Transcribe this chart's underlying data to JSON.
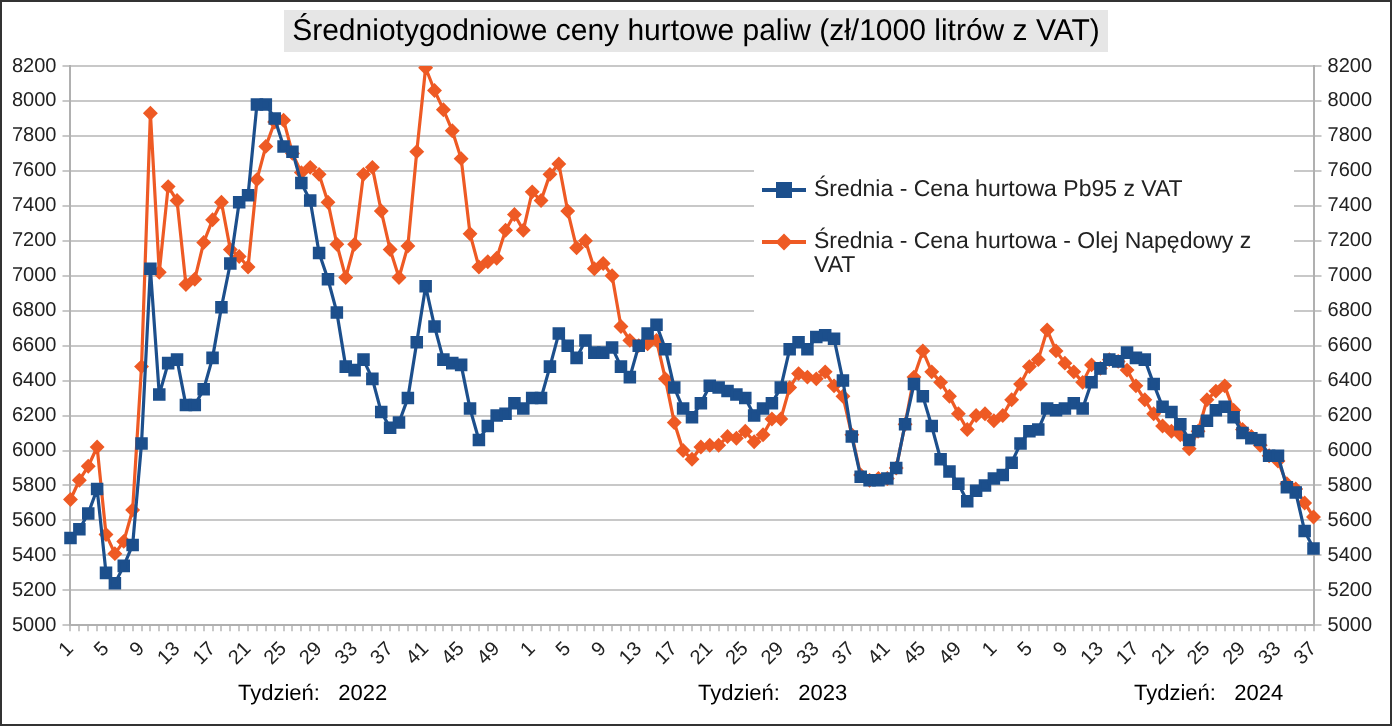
{
  "chart_data": {
    "type": "line",
    "title": "Średniotygodniowe ceny hurtowe paliw (zł/1000 litrów z VAT)",
    "categories": [
      "1",
      null,
      null,
      null,
      "5",
      null,
      null,
      null,
      "9",
      null,
      null,
      null,
      "13",
      null,
      null,
      null,
      "17",
      null,
      null,
      null,
      "21",
      null,
      null,
      null,
      "25",
      null,
      null,
      null,
      "29",
      null,
      null,
      null,
      "33",
      null,
      null,
      null,
      "37",
      null,
      null,
      null,
      "41",
      null,
      null,
      null,
      "45",
      null,
      null,
      null,
      "49",
      null,
      null,
      null,
      "1",
      null,
      null,
      null,
      "5",
      null,
      null,
      null,
      "9",
      null,
      null,
      null,
      "13",
      null,
      null,
      null,
      "17",
      null,
      null,
      null,
      "21",
      null,
      null,
      null,
      "25",
      null,
      null,
      null,
      "29",
      null,
      null,
      null,
      "33",
      null,
      null,
      null,
      "37",
      null,
      null,
      null,
      "41",
      null,
      null,
      null,
      "45",
      null,
      null,
      null,
      "49",
      null,
      null,
      null,
      "1",
      null,
      null,
      null,
      "5",
      null,
      null,
      null,
      "9",
      null,
      null,
      null,
      "13",
      null,
      null,
      null,
      "17",
      null,
      null,
      null,
      "21",
      null,
      null,
      null,
      "25",
      null,
      null,
      null,
      "29",
      null,
      null,
      null,
      "33",
      null,
      null,
      null,
      "37"
    ],
    "series": [
      {
        "name": "Średnia - Cena hurtowa Pb95 z VAT",
        "color": "#1c4f8c",
        "marker": "square",
        "values": [
          5500,
          5550,
          5640,
          5780,
          5300,
          5240,
          5340,
          5460,
          6040,
          7040,
          6320,
          6500,
          6520,
          6260,
          6260,
          6350,
          6530,
          6820,
          7070,
          7420,
          7460,
          7980,
          7980,
          7900,
          7740,
          7710,
          7530,
          7430,
          7130,
          6980,
          6790,
          6480,
          6460,
          6520,
          6410,
          6220,
          6130,
          6160,
          6300,
          6620,
          6940,
          6710,
          6520,
          6500,
          6490,
          6240,
          6060,
          6140,
          6200,
          6210,
          6270,
          6240,
          6300,
          6300,
          6480,
          6670,
          6600,
          6530,
          6630,
          6560,
          6560,
          6590,
          6480,
          6420,
          6600,
          6670,
          6720,
          6580,
          6360,
          6240,
          6190,
          6270,
          6370,
          6360,
          6340,
          6320,
          6300,
          6200,
          6240,
          6270,
          6360,
          6580,
          6620,
          6580,
          6650,
          6660,
          6640,
          6400,
          6080,
          5850,
          5830,
          5830,
          5840,
          5900,
          6150,
          6380,
          6310,
          6140,
          5950,
          5880,
          5810,
          5710,
          5770,
          5800,
          5840,
          5860,
          5930,
          6040,
          6110,
          6120,
          6240,
          6230,
          6240,
          6270,
          6240,
          6390,
          6470,
          6520,
          6510,
          6560,
          6530,
          6520,
          6380,
          6250,
          6220,
          6150,
          6060,
          6110,
          6170,
          6230,
          6250,
          6190,
          6100,
          6070,
          6060,
          5970,
          5970,
          5790,
          5760,
          5540,
          5440
        ]
      },
      {
        "name": "Średnia - Cena hurtowa - Olej Napędowy z VAT",
        "color": "#ee5a24",
        "marker": "diamond",
        "values": [
          5720,
          5830,
          5910,
          6020,
          5520,
          5410,
          5480,
          5660,
          6480,
          7930,
          7020,
          7510,
          7430,
          6950,
          6980,
          7190,
          7320,
          7420,
          7150,
          7110,
          7050,
          7550,
          7740,
          7880,
          7890,
          7700,
          7590,
          7620,
          7580,
          7420,
          7180,
          6990,
          7180,
          7580,
          7620,
          7370,
          7150,
          6990,
          7170,
          7710,
          8190,
          8060,
          7950,
          7830,
          7670,
          7240,
          7050,
          7080,
          7100,
          7260,
          7350,
          7260,
          7480,
          7430,
          7580,
          7640,
          7370,
          7160,
          7200,
          7040,
          7070,
          7000,
          6710,
          6630,
          6600,
          6610,
          6630,
          6410,
          6160,
          6000,
          5950,
          6020,
          6030,
          6030,
          6080,
          6070,
          6110,
          6050,
          6090,
          6180,
          6180,
          6360,
          6440,
          6420,
          6410,
          6450,
          6370,
          6310,
          6090,
          5860,
          5830,
          5840,
          5840,
          5900,
          6150,
          6420,
          6570,
          6450,
          6390,
          6310,
          6210,
          6120,
          6200,
          6210,
          6170,
          6200,
          6290,
          6380,
          6480,
          6520,
          6690,
          6570,
          6500,
          6450,
          6390,
          6490,
          6470,
          6520,
          6510,
          6460,
          6370,
          6290,
          6210,
          6140,
          6110,
          6090,
          6010,
          6110,
          6290,
          6340,
          6370,
          6230,
          6120,
          6080,
          6030,
          5970,
          5940,
          5810,
          5780,
          5700,
          5620
        ]
      }
    ],
    "ylim": [
      5000,
      8200
    ],
    "yticks": [
      5000,
      5200,
      5400,
      5600,
      5800,
      6000,
      6200,
      6400,
      6600,
      6800,
      7000,
      7200,
      7400,
      7600,
      7800,
      8000,
      8200
    ],
    "y2lim": [
      5000,
      8200
    ],
    "y2ticks": [
      5000,
      5200,
      5400,
      5600,
      5800,
      6000,
      6200,
      6400,
      6600,
      6800,
      7000,
      7200,
      7400,
      7600,
      7800,
      8000,
      8200
    ],
    "grid": "y",
    "legend": "top right",
    "annotations": [
      "Tydzień:   2022",
      "Tydzień:   2023",
      "Tydzień:   2024"
    ]
  }
}
